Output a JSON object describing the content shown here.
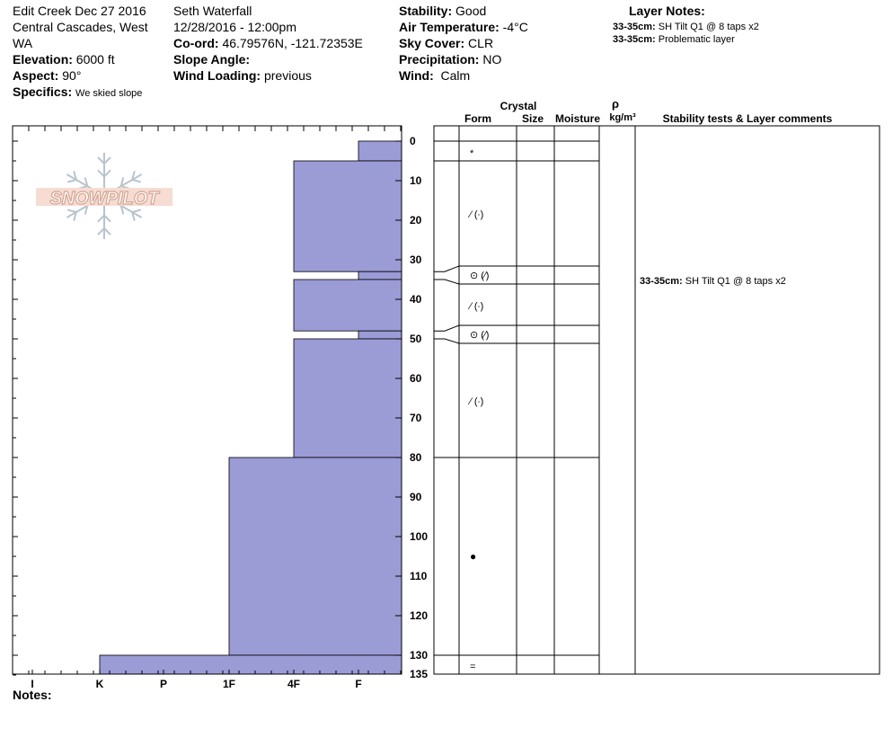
{
  "header": {
    "location_line1": "Edit Creek Dec 27 2016",
    "location_line2": "Central Cascades, West",
    "location_line3": "WA",
    "elevation_label": "Elevation:",
    "elevation_value": "6000 ft",
    "aspect_label": "Aspect:",
    "aspect_value": "90°",
    "specifics_label": "Specifics:",
    "specifics_value": "We skied slope",
    "observer": "Seth Waterfall",
    "datetime": "12/28/2016 - 12:00pm",
    "coord_label": "Co-ord:",
    "coord_value": "46.79576N, -121.72353E",
    "slope_angle_label": "Slope Angle:",
    "slope_angle_value": "",
    "wind_loading_label": "Wind Loading:",
    "wind_loading_value": "previous",
    "stability_label": "Stability:",
    "stability_value": "Good",
    "air_temp_label": "Air Temperature:",
    "air_temp_value": "-4°C",
    "sky_cover_label": "Sky Cover:",
    "sky_cover_value": "CLR",
    "precip_label": "Precipitation:",
    "precip_value": "NO",
    "wind_label": "Wind:",
    "wind_value": "Calm",
    "layer_notes_title": "Layer Notes:",
    "layer_notes": [
      {
        "depth": "33-35cm:",
        "text": "SH Tilt Q1 @ 8 taps x2"
      },
      {
        "depth": "33-35cm:",
        "text": "Problematic layer"
      }
    ]
  },
  "logo_text": "SNOWPILOT",
  "notes_label": "Notes:",
  "columns": {
    "crystal": "Crystal",
    "form": "Form",
    "size": "Size",
    "moisture": "Moisture",
    "rho": "ρ",
    "density_unit": "kg/m³",
    "comments": "Stability tests & Layer comments"
  },
  "colors": {
    "hardness_fill": "#9b9bd6",
    "logo": "#d4a593",
    "flake": "#b8c4cc"
  },
  "chart_data": {
    "type": "bar",
    "orientation": "horizontal-profile",
    "hardness_categories": [
      "I",
      "K",
      "P",
      "1F",
      "4F",
      "F"
    ],
    "depth_ticks": [
      0,
      10,
      20,
      30,
      40,
      50,
      60,
      70,
      80,
      90,
      100,
      110,
      120,
      130,
      135
    ],
    "depth_range_cm": [
      0,
      135
    ],
    "layers": [
      {
        "top": 0,
        "bottom": 5,
        "hardness": "F",
        "form": "*"
      },
      {
        "top": 5,
        "bottom": 33,
        "hardness": "4F",
        "form": "⁄ (∙)"
      },
      {
        "top": 33,
        "bottom": 35,
        "hardness": "F",
        "form": "⊙ (⁄)"
      },
      {
        "top": 35,
        "bottom": 48,
        "hardness": "4F",
        "form": "⁄ (∙)"
      },
      {
        "top": 48,
        "bottom": 50,
        "hardness": "F",
        "form": "⊙ (⁄)"
      },
      {
        "top": 50,
        "bottom": 80,
        "hardness": "4F",
        "form": "⁄ (∙)"
      },
      {
        "top": 80,
        "bottom": 130,
        "hardness": "1F",
        "form": "●"
      },
      {
        "top": 130,
        "bottom": 135,
        "hardness": "K",
        "form": "="
      }
    ],
    "layer_comments": [
      {
        "depth": 35,
        "depth_label": "33-35cm:",
        "text": "SH Tilt Q1 @ 8 taps x2"
      }
    ]
  }
}
